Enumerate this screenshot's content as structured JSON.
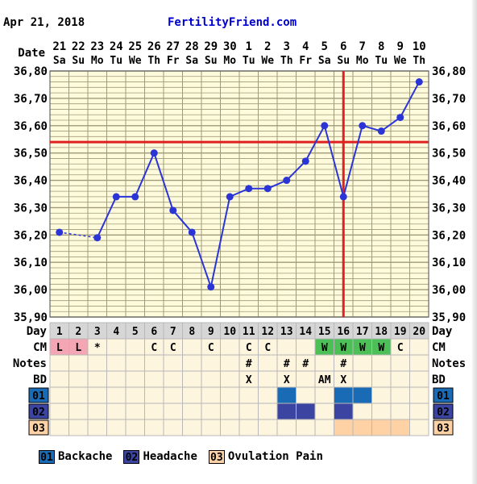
{
  "header": {
    "date": "Apr 21, 2018",
    "site": "FertilityFriend.com"
  },
  "chart_data": {
    "type": "line",
    "title": "",
    "ylabel_units": "",
    "ylim": [
      35.9,
      36.8
    ],
    "y_ticks": [
      "36,80",
      "36,70",
      "36,60",
      "36,50",
      "36,40",
      "36,30",
      "36,20",
      "36,10",
      "36,00",
      "35,90"
    ],
    "date_label": "Date",
    "day_label": "Day",
    "dates": [
      {
        "num": "21",
        "dow": "Sa"
      },
      {
        "num": "22",
        "dow": "Su"
      },
      {
        "num": "23",
        "dow": "Mo"
      },
      {
        "num": "24",
        "dow": "Tu"
      },
      {
        "num": "25",
        "dow": "We"
      },
      {
        "num": "26",
        "dow": "Th"
      },
      {
        "num": "27",
        "dow": "Fr"
      },
      {
        "num": "28",
        "dow": "Sa"
      },
      {
        "num": "29",
        "dow": "Su"
      },
      {
        "num": "30",
        "dow": "Mo"
      },
      {
        "num": "1",
        "dow": "Tu"
      },
      {
        "num": "2",
        "dow": "We"
      },
      {
        "num": "3",
        "dow": "Th"
      },
      {
        "num": "4",
        "dow": "Fr"
      },
      {
        "num": "5",
        "dow": "Sa"
      },
      {
        "num": "6",
        "dow": "Su"
      },
      {
        "num": "7",
        "dow": "Mo"
      },
      {
        "num": "8",
        "dow": "Tu"
      },
      {
        "num": "9",
        "dow": "We"
      },
      {
        "num": "10",
        "dow": "Th"
      }
    ],
    "cycle_days": [
      "1",
      "2",
      "3",
      "4",
      "5",
      "6",
      "7",
      "8",
      "9",
      "10",
      "11",
      "12",
      "13",
      "14",
      "15",
      "16",
      "17",
      "18",
      "19",
      "20"
    ],
    "temperatures": [
      36.21,
      null,
      36.19,
      36.34,
      36.34,
      36.5,
      36.29,
      36.21,
      36.01,
      36.34,
      36.37,
      36.37,
      36.4,
      36.47,
      36.6,
      36.34,
      36.6,
      36.58,
      36.63,
      36.76
    ],
    "dashed_segment_days": [
      1,
      3
    ],
    "coverline": 36.54,
    "ovulation_day": 16,
    "line_color": "#2b35d6",
    "coverline_color": "#e02020",
    "grid_color": "#a09a78",
    "plot_bg": "#fdfbdc"
  },
  "rows": {
    "cm": {
      "label": "CM",
      "cells": [
        "L",
        "L",
        "*",
        "",
        "",
        "C",
        "C",
        "",
        "C",
        "",
        "C",
        "C",
        "",
        "",
        "W",
        "W",
        "W",
        "W",
        "C",
        ""
      ],
      "colors": {
        "L": "#f4a6b4",
        "W": "#4cc057"
      }
    },
    "notes": {
      "label": "Notes",
      "cells": [
        "",
        "",
        "",
        "",
        "",
        "",
        "",
        "",
        "",
        "",
        "#",
        "",
        "#",
        "#",
        "",
        "#",
        "",
        "",
        "",
        ""
      ]
    },
    "bd": {
      "label": "BD",
      "cells": [
        "",
        "",
        "",
        "",
        "",
        "",
        "",
        "",
        "",
        "",
        "X",
        "",
        "X",
        "",
        "AM",
        "X",
        "",
        "",
        "",
        ""
      ]
    },
    "sym01": {
      "label": "01",
      "days": [
        13,
        16,
        17
      ],
      "color": "#1a6bb5"
    },
    "sym02": {
      "label": "02",
      "days": [
        13,
        14,
        16
      ],
      "color": "#3b44a0"
    },
    "sym03": {
      "label": "03",
      "days": [
        16,
        17,
        18,
        19
      ],
      "color": "#ffd2a6"
    }
  },
  "legend": [
    {
      "code": "01",
      "text": "Backache",
      "color": "#1a6bb5"
    },
    {
      "code": "02",
      "text": "Headache",
      "color": "#3b44a0"
    },
    {
      "code": "03",
      "text": "Ovulation Pain",
      "color": "#ffd2a6"
    }
  ]
}
